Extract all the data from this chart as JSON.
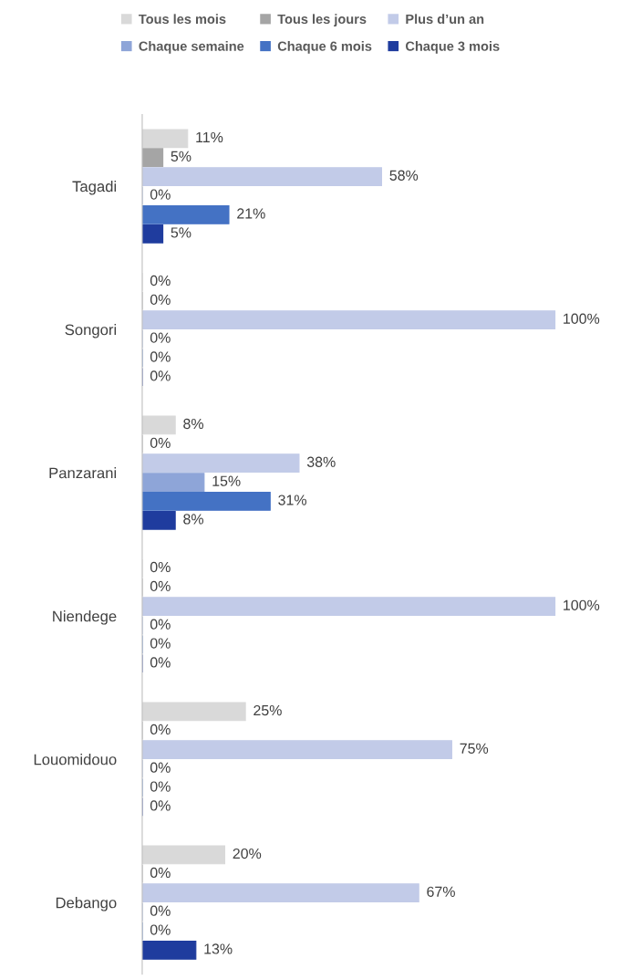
{
  "chart_data": {
    "type": "bar",
    "orientation": "horizontal",
    "legend": "top",
    "grid": false,
    "tick_labels": "y",
    "categories": [
      "Tagadi",
      "Songori",
      "Panzarani",
      "Niendege",
      "Louomidouo",
      "Debango"
    ],
    "series": [
      {
        "name": "Tous les mois",
        "color": "#d9d9d9",
        "values": [
          11,
          0,
          8,
          0,
          25,
          20
        ],
        "value_labels": [
          "11%",
          "0%",
          "8%",
          "0%",
          "25%",
          "20%"
        ]
      },
      {
        "name": "Tous les jours",
        "color": "#a5a5a5",
        "values": [
          5,
          0,
          0,
          0,
          0,
          0
        ],
        "value_labels": [
          "5%",
          "0%",
          "0%",
          "0%",
          "0%",
          "0%"
        ]
      },
      {
        "name": "Plus d’un an",
        "color": "#c2cbe8",
        "values": [
          58,
          100,
          38,
          100,
          75,
          67
        ],
        "value_labels": [
          "58%",
          "100%",
          "38%",
          "100%",
          "75%",
          "67%"
        ]
      },
      {
        "name": "Chaque semaine",
        "color": "#8ea5d8",
        "values": [
          0,
          0,
          15,
          0,
          0,
          0
        ],
        "value_labels": [
          "0%",
          "0%",
          "15%",
          "0%",
          "0%",
          "0%"
        ]
      },
      {
        "name": "Chaque 6 mois",
        "color": "#4472c4",
        "values": [
          21,
          0,
          31,
          0,
          0,
          0
        ],
        "value_labels": [
          "21%",
          "0%",
          "31%",
          "0%",
          "0%",
          "0%"
        ]
      },
      {
        "name": "Chaque 3 mois",
        "color": "#1f3c9e",
        "values": [
          5,
          0,
          8,
          0,
          0,
          13
        ],
        "value_labels": [
          "5%",
          "0%",
          "8%",
          "0%",
          "0%",
          "13%"
        ]
      }
    ]
  }
}
